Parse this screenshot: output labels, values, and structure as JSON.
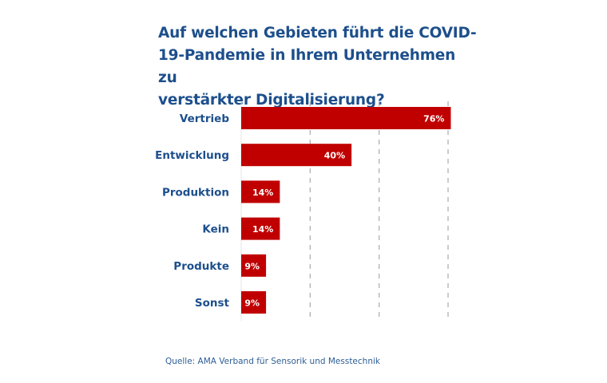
{
  "chart_data": {
    "type": "bar",
    "orientation": "horizontal",
    "title": "Auf welchen Gebieten führt die COVID-19-Pandemie in Ihrem Unternehmen zu verstärkter Digitalisierung?",
    "title_lines": [
      "Auf welchen Gebieten führt die COVID-",
      "19-Pandemie in Ihrem Unternehmen zu",
      "verstärkter Digitalisierung?"
    ],
    "categories": [
      "Vertrieb",
      "Entwicklung",
      "Produktion",
      "Kein",
      "Produkte",
      "Sonst"
    ],
    "values": [
      76,
      40,
      14,
      14,
      9,
      9
    ],
    "data_labels": [
      "76%",
      "40%",
      "14%",
      "14%",
      "9%",
      "9%"
    ],
    "xlabel": "",
    "ylabel": "",
    "xlim": [
      0,
      75
    ],
    "gridlines": [
      25,
      50,
      75
    ],
    "grid": true,
    "legend": "none",
    "source": "Quelle: AMA Verband für Sensorik und Messtechnik"
  },
  "colors": {
    "bar": "#c00000",
    "title": "#1d4f8c",
    "category_label": "#1d4f8c",
    "grid": "#b0b0b0",
    "source": "#2d5e96"
  }
}
